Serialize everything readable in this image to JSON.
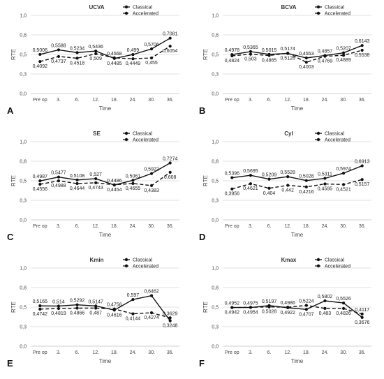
{
  "chart_data": [
    {
      "type": "line",
      "panel_label": "A",
      "title": "UCVA",
      "xlabel": "Time",
      "ylabel": "RTE",
      "categories": [
        "Pre op",
        "3.",
        "6.",
        "12.",
        "18.",
        "24.",
        "30.",
        "36."
      ],
      "yticks": [
        "0,0",
        "0,3",
        "0,5",
        "0,8",
        "1,0"
      ],
      "ylim": [
        0,
        1
      ],
      "legend_position": "top-right",
      "grid": true,
      "series": [
        {
          "name": "Classical",
          "values": [
            0.5006,
            0.5588,
            0.5234,
            0.5436,
            0.4485,
            0.499,
            0.5706,
            0.7081
          ],
          "labels": [
            "0,5006",
            "0,5588",
            "0,5234",
            "0,5436",
            "0,4485",
            "0,499",
            "0,5706",
            "0,7081"
          ]
        },
        {
          "name": "Accelerated",
          "values": [
            0.4092,
            0.4737,
            0.4518,
            0.509,
            0.4568,
            0.4449,
            0.455,
            0.6054
          ],
          "labels": [
            "0,4092",
            "0,4737",
            "0,4518",
            "0,509",
            "0,4568",
            "0,4449",
            "0,455",
            "0,6054"
          ]
        }
      ]
    },
    {
      "type": "line",
      "panel_label": "B",
      "title": "BCVA",
      "xlabel": "Time",
      "ylabel": "RTE",
      "categories": [
        "Pre op",
        "3.",
        "6.",
        "12.",
        "18.",
        "24.",
        "30.",
        "36."
      ],
      "yticks": [
        "0,0",
        "0,3",
        "0,5",
        "0,8",
        "1,0"
      ],
      "ylim": [
        0,
        1
      ],
      "legend_position": "top-right",
      "grid": true,
      "series": [
        {
          "name": "Classical",
          "values": [
            0.4978,
            0.5365,
            0.5015,
            0.5126,
            0.4553,
            0.4857,
            0.5207,
            0.6143
          ],
          "labels": [
            "0,4978",
            "0,5365",
            "0,5015",
            "0,5126",
            "0,4553",
            "0,4857",
            "0,5207",
            "0,6143"
          ]
        },
        {
          "name": "Accelerated",
          "values": [
            0.4824,
            0.503,
            0.4865,
            0.5174,
            0.4003,
            0.4769,
            0.4889,
            0.5538
          ],
          "labels": [
            "0,4824",
            "0,503",
            "0,4865",
            "0,5174",
            "0,4003",
            "0,4769",
            "0,4889",
            "0,5538"
          ]
        }
      ]
    },
    {
      "type": "line",
      "panel_label": "C",
      "title": "SE",
      "xlabel": "Time",
      "ylabel": "RTE",
      "categories": [
        "Pre op",
        "3.",
        "6.",
        "12.",
        "18.",
        "24.",
        "30.",
        "36."
      ],
      "yticks": [
        "0,0",
        "0,3",
        "0,5",
        "0,8",
        "1,0"
      ],
      "ylim": [
        0,
        1
      ],
      "legend_position": "top-right",
      "grid": true,
      "series": [
        {
          "name": "Classical",
          "values": [
            0.4987,
            0.5477,
            0.5108,
            0.527,
            0.4454,
            0.5061,
            0.5922,
            0.7274
          ],
          "labels": [
            "0,4987",
            "0,5477",
            "0,5108",
            "0,527",
            "0,4454",
            "0,5061",
            "0,5922",
            "0,7274"
          ]
        },
        {
          "name": "Accelerated",
          "values": [
            0.4556,
            0.4988,
            0.4644,
            0.4743,
            0.4486,
            0.4655,
            0.4383,
            0.608
          ],
          "labels": [
            "0,4556",
            "0,4988",
            "0,4644",
            "0,4743",
            "0,4486",
            "0,4655",
            "0,4383",
            "0,608"
          ]
        }
      ]
    },
    {
      "type": "line",
      "panel_label": "D",
      "title": "Cyl",
      "xlabel": "Time",
      "ylabel": "RTE",
      "categories": [
        "Pre op",
        "3.",
        "6.",
        "12.",
        "18.",
        "24.",
        "30.",
        "36."
      ],
      "yticks": [
        "0,0",
        "0,3",
        "0,5",
        "0,8",
        "1,0"
      ],
      "ylim": [
        0,
        1
      ],
      "legend_position": "top-right",
      "grid": true,
      "series": [
        {
          "name": "Classical",
          "values": [
            0.5396,
            0.5695,
            0.5209,
            0.5528,
            0.5028,
            0.5311,
            0.5974,
            0.6913
          ],
          "labels": [
            "0,5396",
            "0,5695",
            "0,5209",
            "0,5528",
            "0,5028",
            "0,5311",
            "0,5974",
            "0,6913"
          ]
        },
        {
          "name": "Accelerated",
          "values": [
            0.3956,
            0.4621,
            0.404,
            0.442,
            0.4216,
            0.4595,
            0.4521,
            0.5157
          ],
          "labels": [
            "0,3956",
            "0,4621",
            "0,404",
            "0,442",
            "0,4216",
            "0,4595",
            "0,4521",
            "0,5157"
          ]
        }
      ]
    },
    {
      "type": "line",
      "panel_label": "E",
      "title": "Kmin",
      "xlabel": "Time",
      "ylabel": "RTE",
      "categories": [
        "Pre op",
        "3.",
        "6.",
        "12.",
        "18.",
        "24.",
        "30.",
        "36."
      ],
      "yticks": [
        "0,0",
        "0,3",
        "0,5",
        "0,8",
        "1,0"
      ],
      "ylim": [
        0,
        1
      ],
      "legend_position": "top-right",
      "grid": true,
      "series": [
        {
          "name": "Classical",
          "values": [
            0.5165,
            0.514,
            0.5292,
            0.5147,
            0.4616,
            0.597,
            0.6462,
            0.3248
          ],
          "labels": [
            "0,5165",
            "0,514",
            "0,5292",
            "0,5147",
            "0,4616",
            "0,597",
            "0,6462",
            "0,3248"
          ]
        },
        {
          "name": "Accelerated",
          "values": [
            0.4742,
            0.4819,
            0.4866,
            0.487,
            0.4758,
            0.4144,
            0.4274,
            0.3629
          ],
          "labels": [
            "0,4742",
            "0,4819",
            "0,4866",
            "0,487",
            "0,4758",
            "0,4144",
            "0,4274",
            "0,3629"
          ]
        }
      ]
    },
    {
      "type": "line",
      "panel_label": "F",
      "title": "Kmax",
      "xlabel": "Time",
      "ylabel": "RTE",
      "categories": [
        "Pre op",
        "3.",
        "6.",
        "12.",
        "18.",
        "24.",
        "30.",
        "36."
      ],
      "yticks": [
        "0,0",
        "0,3",
        "0,5",
        "0,8",
        "1,0"
      ],
      "ylim": [
        0,
        1
      ],
      "legend_position": "top-right",
      "grid": true,
      "series": [
        {
          "name": "Classical",
          "values": [
            0.4952,
            0.4954,
            0.5197,
            0.4922,
            0.4707,
            0.5802,
            0.5526,
            0.3676
          ],
          "labels": [
            "0,4952",
            "0,4954",
            "0,5197",
            "0,4922",
            "0,4707",
            "0,5802",
            "0,5526",
            "0,3676"
          ]
        },
        {
          "name": "Accelerated",
          "values": [
            0.4942,
            0.4975,
            0.5028,
            0.4986,
            0.5224,
            0.483,
            0.4826,
            0.4117
          ],
          "labels": [
            "0,4942",
            "0,4975",
            "0,5028",
            "0,4986",
            "0,5224",
            "0,483",
            "0,4826",
            "0,4117"
          ]
        }
      ]
    }
  ],
  "style": {
    "classical_color": "#111111",
    "accelerated_color": "#111111",
    "grid_color": "#d9d9d9",
    "axis_color": "#bfbfbf"
  }
}
